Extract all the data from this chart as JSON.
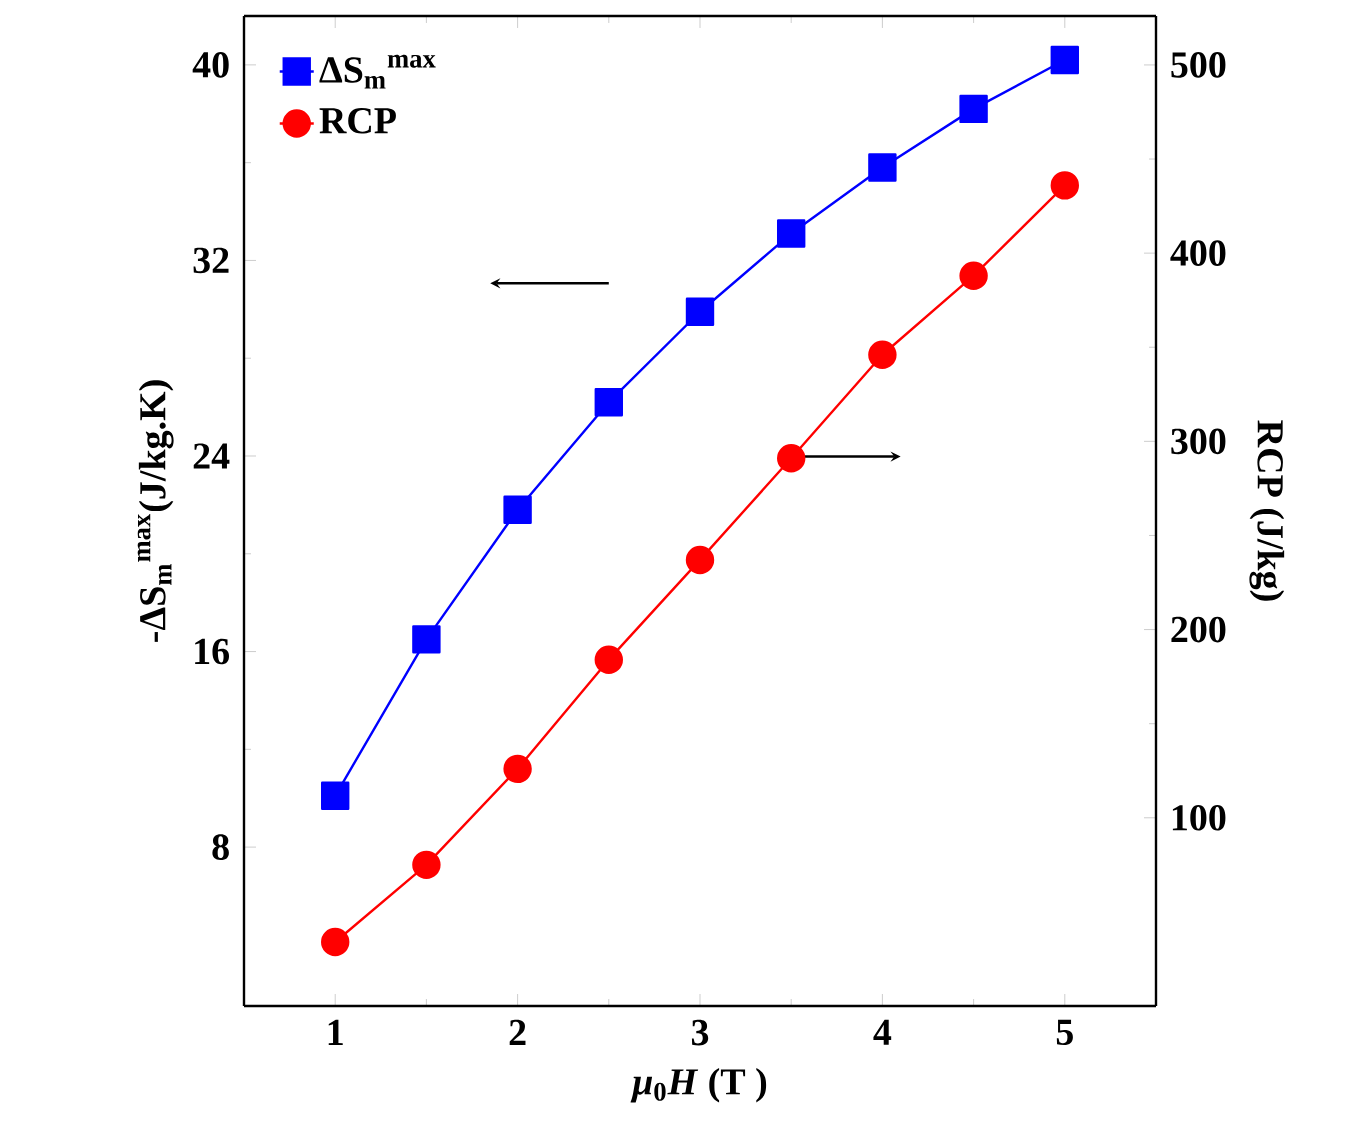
{
  "chart_data": {
    "type": "line",
    "xlabel": "*μ*$_{0}$*H* (T )",
    "ylabel": "-ΔS$_{m}$$^{max}$(J/kg.K)",
    "y2label": "RCP (J/kg)",
    "x": [
      1,
      1.5,
      2,
      2.5,
      3,
      3.5,
      4,
      4.5,
      5
    ],
    "series": [
      {
        "name": "ΔS$_{m}$$^{max}$",
        "color": "#0000ff",
        "marker": "square",
        "values": [
          10.1,
          16.5,
          21.8,
          26.2,
          29.9,
          33.1,
          35.8,
          38.2,
          40.2
        ]
      },
      {
        "name": "RCP",
        "color": "#ff0000",
        "marker": "circle",
        "axis": "y2",
        "values": [
          34,
          75,
          126,
          184,
          237,
          291,
          346,
          388,
          436
        ]
      }
    ],
    "xlim": [
      0.5,
      5.5
    ],
    "xticks": [
      1,
      2,
      3,
      4,
      5
    ],
    "ylim": [
      1.5,
      42
    ],
    "yticks": [
      8,
      16,
      24,
      32,
      40
    ],
    "y2lim": [
      0,
      526
    ],
    "y2ticks": [
      100,
      200,
      300,
      400,
      500
    ],
    "legend": "top left",
    "grid": false
  }
}
